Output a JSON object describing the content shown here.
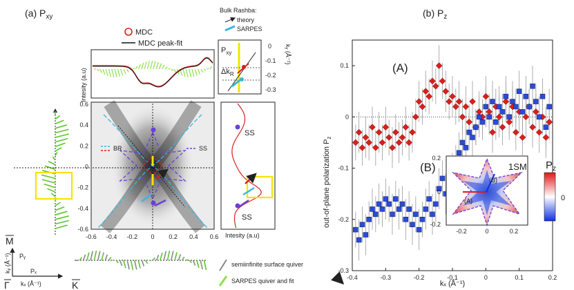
{
  "panel_a": {
    "title": "(a) P",
    "title_sub": "xy",
    "legend_mdc": "MDC",
    "legend_fit": "MDC peak-fit",
    "top_ylabel": "Intesity (a.u)",
    "right_xlabel": "Intesity (a.u)",
    "bulk_title": "Bulk Rashba:",
    "bulk_theory": "theory",
    "bulk_sarpes": "SARPES",
    "inset_p": "P",
    "inset_p_sub": "xy",
    "inset_dk": "Δk",
    "inset_dk_sub": "R",
    "inset_ylabel": "kᵧ (Å⁻¹)",
    "inset_ticks": [
      "0",
      "-0.1",
      "-0.2",
      "-0.3"
    ],
    "map_xticks": [
      "-0.6",
      "-0.4",
      "-0.2",
      "0",
      "0.2",
      "0.4",
      "0.6"
    ],
    "map_yticks": [
      "0.6",
      "0.4",
      "0.2",
      "0",
      "-0.2",
      "-0.4",
      "-0.6"
    ],
    "map_legend_br": "BR",
    "map_legend_ss": "SS",
    "map_ss_right": "SS",
    "ss_label_1": "SS",
    "ss_label_2": "SS",
    "axis_M": "M",
    "axis_G": "Γ",
    "axis_K": "K",
    "axis_py": "Pᵧ",
    "axis_px": "Pₓ",
    "axis_ky": "kᵧ (Å⁻¹)",
    "axis_kx": "kₓ (Å⁻¹)",
    "quiver_legend_1": "semiinfinite surface quiver",
    "quiver_legend_2": "SARPES quiver and fit"
  },
  "panel_b": {
    "title": "(b) P",
    "title_sub": "z",
    "label_A": "(A)",
    "label_B": "(B)",
    "ylabel": "out-of-plane polarization P",
    "ylabel_sub": "z",
    "xlabel": "kₓ (Å⁻¹)",
    "inset_title": "1SM",
    "inset_A": "(A)",
    "inset_B": "(B)",
    "colorbar_title": "P",
    "colorbar_sub": "z",
    "colorbar_zero": "0",
    "inset_xticks": [
      "-0.2",
      "0",
      "0.2"
    ],
    "inset_yticks": [
      "0.2",
      "0",
      "-0.2"
    ]
  },
  "colors": {
    "red_series": "#d8201c",
    "blue_series": "#2c4bd6",
    "cyan": "#38b6e0",
    "purple": "#6a3fd8",
    "green": "#5bc52a",
    "yellow": "#f4e400"
  },
  "chart_data": {
    "type": "scatter",
    "title": "(b) Pz",
    "xlabel": "kx (Å⁻¹)",
    "ylabel": "out-of-plane polarization Pz",
    "xlim": [
      -0.4,
      0.2
    ],
    "ylim": [
      -0.3,
      0.15
    ],
    "xticks": [
      -0.4,
      -0.3,
      -0.2,
      -0.1,
      0,
      0.1,
      0.2
    ],
    "yticks": [
      -0.3,
      -0.2,
      -0.1,
      0,
      0.1
    ],
    "xtick_labels": [
      "-0.4",
      "-0.3",
      "-0.2",
      "-0.1",
      "0",
      "0.1",
      "0.2"
    ],
    "ytick_labels": [
      "-0.3",
      "-0.2",
      "-0.1",
      "0",
      "0.1"
    ],
    "series": [
      {
        "name": "(A)",
        "marker": "diamond",
        "x": [
          -0.39,
          -0.38,
          -0.37,
          -0.36,
          -0.35,
          -0.34,
          -0.33,
          -0.32,
          -0.31,
          -0.3,
          -0.29,
          -0.28,
          -0.27,
          -0.26,
          -0.25,
          -0.24,
          -0.23,
          -0.22,
          -0.21,
          -0.2,
          -0.19,
          -0.18,
          -0.17,
          -0.16,
          -0.15,
          -0.14,
          -0.13,
          -0.12,
          -0.11,
          -0.1,
          -0.09,
          -0.08,
          -0.07,
          -0.06,
          -0.05,
          -0.04,
          -0.03,
          -0.02,
          -0.01,
          0.0,
          0.01,
          0.02,
          0.03,
          0.04,
          0.05,
          0.06,
          0.07,
          0.08,
          0.09,
          0.1,
          0.11,
          0.12,
          0.13,
          0.14,
          0.15,
          0.16,
          0.17,
          0.18,
          0.19
        ],
        "y": [
          -0.05,
          -0.03,
          -0.06,
          -0.04,
          -0.05,
          -0.02,
          -0.06,
          -0.03,
          -0.05,
          -0.02,
          -0.04,
          -0.06,
          -0.03,
          -0.05,
          -0.04,
          -0.02,
          -0.05,
          -0.03,
          0.0,
          0.03,
          0.02,
          0.05,
          0.04,
          0.07,
          0.06,
          0.1,
          0.07,
          0.05,
          0.03,
          0.04,
          0.02,
          0.03,
          0.0,
          0.02,
          -0.01,
          0.03,
          -0.02,
          0.01,
          0.0,
          0.04,
          0.01,
          -0.03,
          0.02,
          0.0,
          -0.02,
          0.03,
          -0.01,
          0.02,
          -0.03,
          0.01,
          -0.04,
          0.0,
          0.02,
          -0.02,
          0.01,
          -0.03,
          0.0,
          -0.04,
          -0.01
        ],
        "err": [
          0.035,
          0.04,
          0.035,
          0.04,
          0.035,
          0.04,
          0.035,
          0.04,
          0.035,
          0.04,
          0.035,
          0.04,
          0.035,
          0.04,
          0.035,
          0.04,
          0.035,
          0.04,
          0.035,
          0.04,
          0.035,
          0.04,
          0.035,
          0.04,
          0.035,
          0.04,
          0.035,
          0.04,
          0.035,
          0.04,
          0.035,
          0.04,
          0.035,
          0.04,
          0.035,
          0.04,
          0.035,
          0.04,
          0.035,
          0.04,
          0.035,
          0.04,
          0.035,
          0.04,
          0.035,
          0.04,
          0.035,
          0.04,
          0.035,
          0.04,
          0.035,
          0.04,
          0.035,
          0.04,
          0.035,
          0.04,
          0.035,
          0.04,
          0.035
        ]
      },
      {
        "name": "(B)",
        "marker": "square",
        "x": [
          -0.39,
          -0.38,
          -0.37,
          -0.36,
          -0.35,
          -0.34,
          -0.33,
          -0.32,
          -0.31,
          -0.3,
          -0.29,
          -0.28,
          -0.27,
          -0.26,
          -0.25,
          -0.24,
          -0.23,
          -0.22,
          -0.21,
          -0.2,
          -0.19,
          -0.18,
          -0.17,
          -0.16,
          -0.15,
          -0.14,
          -0.13,
          -0.12,
          -0.11,
          -0.1,
          -0.09,
          -0.08,
          -0.07,
          -0.06,
          -0.05,
          -0.04,
          -0.03,
          -0.02,
          -0.01,
          0.0,
          0.01,
          0.02,
          0.03,
          0.04,
          0.05,
          0.06,
          0.07,
          0.08,
          0.09,
          0.1,
          0.11,
          0.12,
          0.13,
          0.14,
          0.15,
          0.16,
          0.17,
          0.18,
          0.19
        ],
        "y": [
          -0.22,
          -0.24,
          -0.21,
          -0.23,
          -0.2,
          -0.18,
          -0.19,
          -0.17,
          -0.18,
          -0.16,
          -0.17,
          -0.19,
          -0.16,
          -0.18,
          -0.17,
          -0.2,
          -0.18,
          -0.21,
          -0.19,
          -0.22,
          -0.2,
          -0.18,
          -0.16,
          -0.19,
          -0.17,
          -0.14,
          -0.12,
          -0.15,
          -0.13,
          -0.11,
          -0.09,
          -0.07,
          -0.05,
          -0.06,
          -0.03,
          -0.04,
          -0.02,
          0.0,
          -0.01,
          0.02,
          0.0,
          0.03,
          -0.01,
          0.02,
          0.01,
          0.04,
          0.0,
          0.03,
          0.02,
          0.05,
          0.01,
          0.04,
          0.02,
          0.06,
          0.03,
          0.0,
          0.04,
          -0.02,
          0.02
        ],
        "err": [
          0.035,
          0.04,
          0.035,
          0.04,
          0.035,
          0.04,
          0.035,
          0.04,
          0.035,
          0.04,
          0.035,
          0.04,
          0.035,
          0.04,
          0.035,
          0.04,
          0.035,
          0.04,
          0.035,
          0.04,
          0.035,
          0.04,
          0.035,
          0.04,
          0.035,
          0.04,
          0.035,
          0.04,
          0.035,
          0.04,
          0.035,
          0.04,
          0.035,
          0.04,
          0.035,
          0.04,
          0.035,
          0.04,
          0.035,
          0.04,
          0.035,
          0.04,
          0.035,
          0.04,
          0.035,
          0.04,
          0.035,
          0.04,
          0.035,
          0.04,
          0.035,
          0.04,
          0.035,
          0.04,
          0.035,
          0.04,
          0.035,
          0.04,
          0.035
        ]
      }
    ]
  }
}
